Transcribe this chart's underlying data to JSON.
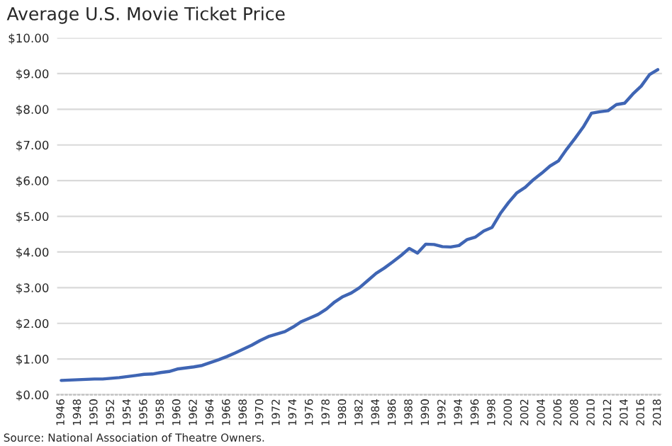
{
  "chart_data": {
    "type": "line",
    "title": "Average U.S. Movie Ticket Price",
    "categories": [
      "1946",
      null,
      "1948",
      null,
      "1950",
      null,
      "1952",
      null,
      "1954",
      null,
      "1956",
      null,
      "1958",
      null,
      "1960",
      null,
      "1962",
      null,
      "1964",
      null,
      "1966",
      null,
      "1968",
      null,
      "1970",
      null,
      "1972",
      null,
      "1974",
      null,
      "1976",
      null,
      "1978",
      null,
      "1980",
      null,
      "1982",
      null,
      "1984",
      null,
      "1986",
      null,
      "1988",
      null,
      "1990",
      null,
      "1992",
      null,
      "1994",
      null,
      "1996",
      null,
      "1998",
      null,
      "2000",
      null,
      "2002",
      null,
      "2004",
      null,
      "2006",
      null,
      "2008",
      null,
      "2010",
      null,
      "2012",
      null,
      "2014",
      null,
      "2016",
      null,
      "2018"
    ],
    "series": [
      {
        "color": "#3f65b4",
        "values": [
          0.4,
          0.41,
          0.42,
          0.43,
          0.44,
          0.44,
          0.46,
          0.48,
          0.51,
          0.54,
          0.57,
          0.58,
          0.62,
          0.65,
          0.72,
          0.75,
          0.78,
          0.82,
          0.9,
          0.98,
          1.07,
          1.17,
          1.28,
          1.39,
          1.52,
          1.63,
          1.7,
          1.77,
          1.9,
          2.05,
          2.15,
          2.25,
          2.4,
          2.6,
          2.75,
          2.85,
          3.0,
          3.2,
          3.4,
          3.55,
          3.72,
          3.9,
          4.1,
          3.97,
          4.22,
          4.21,
          4.15,
          4.14,
          4.18,
          4.35,
          4.42,
          4.59,
          4.69,
          5.08,
          5.39,
          5.66,
          5.81,
          6.03,
          6.21,
          6.41,
          6.55,
          6.88,
          7.18,
          7.5,
          7.89,
          7.93,
          7.96,
          8.13,
          8.17,
          8.43,
          8.65,
          8.97,
          9.11
        ]
      }
    ],
    "ylim": [
      0,
      10
    ],
    "yticks": [
      {
        "value": 0,
        "label": "$0.00"
      },
      {
        "value": 1,
        "label": "$1.00"
      },
      {
        "value": 2,
        "label": "$2.00"
      },
      {
        "value": 3,
        "label": "$3.00"
      },
      {
        "value": 4,
        "label": "$4.00"
      },
      {
        "value": 5,
        "label": "$5.00"
      },
      {
        "value": 6,
        "label": "$6.00"
      },
      {
        "value": 7,
        "label": "$7.00"
      },
      {
        "value": 8,
        "label": "$8.00"
      },
      {
        "value": 9,
        "label": "$9.00"
      },
      {
        "value": 10,
        "label": "$10.00"
      }
    ],
    "grid": "y",
    "marker": "none",
    "line_style": "solid",
    "annotations": [
      "Source: National Association of Theatre Owners."
    ]
  }
}
